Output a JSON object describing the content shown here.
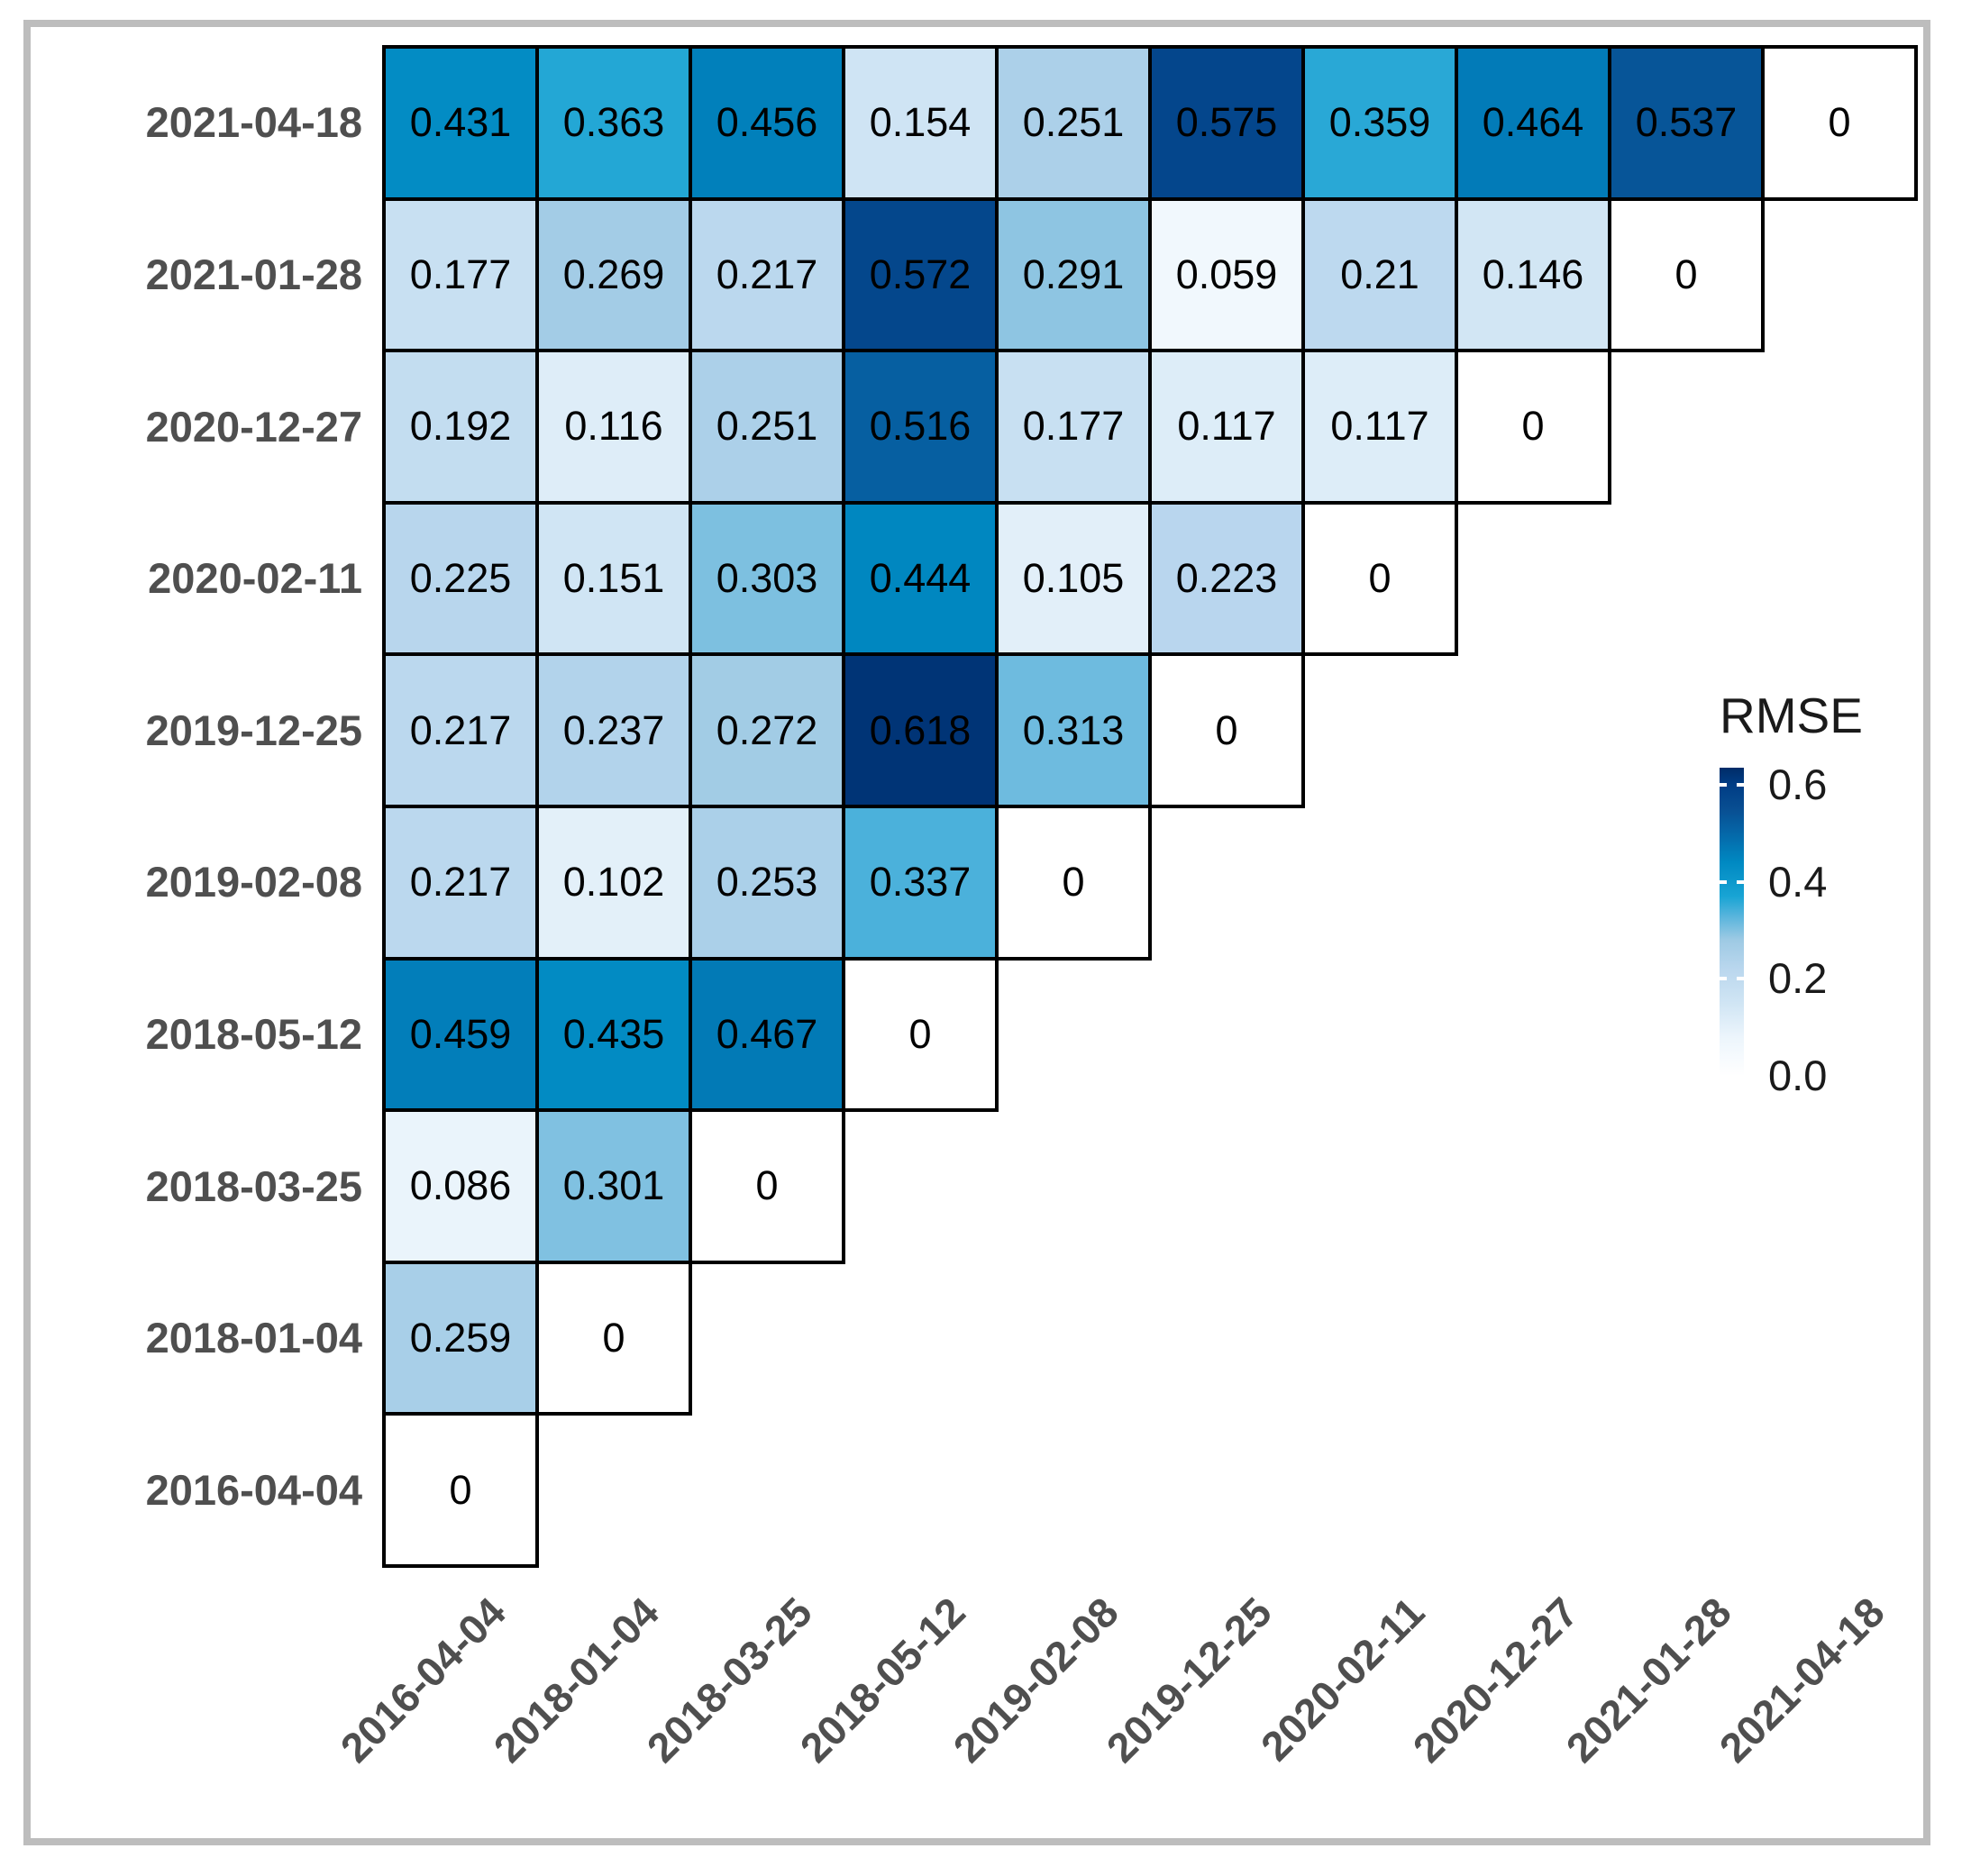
{
  "figure": {
    "background_color": "#ffffff",
    "frame_color": "#bdbdbd"
  },
  "chart_data": {
    "type": "heatmap",
    "subtype": "lower-triangular-rmse-matrix",
    "grid": true,
    "cell_border_color": "#000000",
    "axis_text_color": "#4f4f4f",
    "x_categories": [
      "2016-04-04",
      "2018-01-04",
      "2018-03-25",
      "2018-05-12",
      "2019-02-08",
      "2019-12-25",
      "2020-02-11",
      "2020-12-27",
      "2021-01-28",
      "2021-04-18"
    ],
    "rows_top_to_bottom": [
      {
        "label": "2021-04-18",
        "values": [
          0.431,
          0.363,
          0.456,
          0.154,
          0.251,
          0.575,
          0.359,
          0.464,
          0.537,
          0
        ]
      },
      {
        "label": "2021-01-28",
        "values": [
          0.177,
          0.269,
          0.217,
          0.572,
          0.291,
          0.059,
          0.21,
          0.146,
          0
        ]
      },
      {
        "label": "2020-12-27",
        "values": [
          0.192,
          0.116,
          0.251,
          0.516,
          0.177,
          0.117,
          0.117,
          0
        ]
      },
      {
        "label": "2020-02-11",
        "values": [
          0.225,
          0.151,
          0.303,
          0.444,
          0.105,
          0.223,
          0
        ]
      },
      {
        "label": "2019-12-25",
        "values": [
          0.217,
          0.237,
          0.272,
          0.618,
          0.313,
          0
        ]
      },
      {
        "label": "2019-02-08",
        "values": [
          0.217,
          0.102,
          0.253,
          0.337,
          0
        ]
      },
      {
        "label": "2018-05-12",
        "values": [
          0.459,
          0.435,
          0.467,
          0
        ]
      },
      {
        "label": "2018-03-25",
        "values": [
          0.086,
          0.301,
          0
        ]
      },
      {
        "label": "2018-01-04",
        "values": [
          0.259,
          0
        ]
      },
      {
        "label": "2016-04-04",
        "values": [
          0
        ]
      }
    ],
    "legend": {
      "title": "RMSE",
      "position": "right",
      "tick_labels": [
        "0.6",
        "0.4",
        "0.2",
        "0.0"
      ],
      "tick_values": [
        0.6,
        0.4,
        0.2,
        0.0
      ],
      "bar_value_range": [
        0,
        0.635
      ]
    },
    "colormap_stops": [
      [
        0.0,
        "#ffffff"
      ],
      [
        0.08,
        "#ecf5fc"
      ],
      [
        0.15,
        "#d0e5f4"
      ],
      [
        0.22,
        "#bad7ee"
      ],
      [
        0.28,
        "#9ecae4"
      ],
      [
        0.33,
        "#56b4dc"
      ],
      [
        0.37,
        "#18a4d4"
      ],
      [
        0.44,
        "#0089c2"
      ],
      [
        0.5,
        "#0567a8"
      ],
      [
        0.55,
        "#084e92"
      ],
      [
        0.6,
        "#003d85"
      ],
      [
        0.65,
        "#00255c"
      ]
    ]
  }
}
